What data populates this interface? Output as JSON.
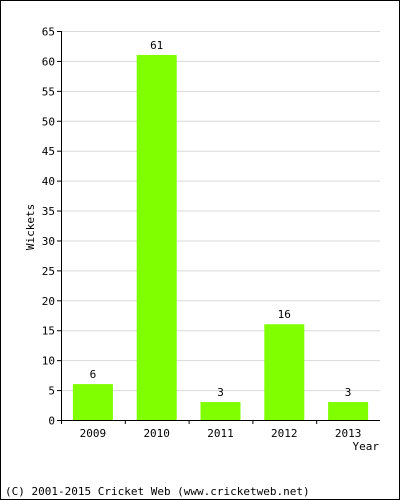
{
  "chart_data": {
    "type": "bar",
    "title": "",
    "xlabel": "Year",
    "ylabel": "Wickets",
    "categories": [
      "2009",
      "2010",
      "2011",
      "2012",
      "2013"
    ],
    "values": [
      6,
      61,
      3,
      16,
      3
    ],
    "data_labels": [
      "6",
      "61",
      "3",
      "16",
      "3"
    ],
    "ylim": [
      0,
      65
    ],
    "yticks": [
      0,
      5,
      10,
      15,
      20,
      25,
      30,
      35,
      40,
      45,
      50,
      55,
      60,
      65
    ],
    "grid": true,
    "legend": "none",
    "bar_color": "#80ff00",
    "grid_color": "#d9d9d9"
  },
  "footer": {
    "copyright": "(C) 2001-2015 Cricket Web (www.cricketweb.net)"
  }
}
